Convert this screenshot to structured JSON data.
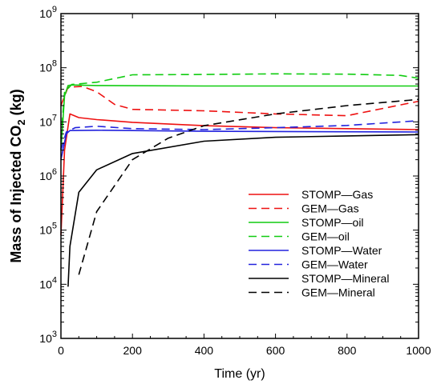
{
  "chart_data": {
    "type": "line",
    "title": "",
    "xlabel": "Time (yr)",
    "ylabel": {
      "prefix": "Mass of Injected CO",
      "subscript": "2",
      "suffix": " (kg)"
    },
    "xlim": [
      0,
      1000
    ],
    "ylim": [
      1000,
      1000000000
    ],
    "yscale": "log",
    "grid": false,
    "legend_position": "right",
    "x_ticks": [
      "0",
      "200",
      "400",
      "600",
      "800",
      "1000"
    ],
    "y_ticks": [
      {
        "base": "10",
        "exp": "3"
      },
      {
        "base": "10",
        "exp": "4"
      },
      {
        "base": "10",
        "exp": "5"
      },
      {
        "base": "10",
        "exp": "6"
      },
      {
        "base": "10",
        "exp": "7"
      },
      {
        "base": "10",
        "exp": "8"
      },
      {
        "base": "10",
        "exp": "9"
      }
    ],
    "series": [
      {
        "name": "STOMP—Gas",
        "color": "#ee1111",
        "dash": "solid",
        "points": [
          [
            0,
            80000
          ],
          [
            10,
            3000000
          ],
          [
            25,
            14000000
          ],
          [
            50,
            12000000
          ],
          [
            100,
            11000000
          ],
          [
            200,
            9800000
          ],
          [
            400,
            8500000
          ],
          [
            600,
            7800000
          ],
          [
            800,
            7500000
          ],
          [
            1000,
            7200000
          ]
        ]
      },
      {
        "name": "GEM—Gas",
        "color": "#ee1111",
        "dash": "dashed",
        "points": [
          [
            0,
            20000000
          ],
          [
            20,
            44000000
          ],
          [
            60,
            45000000
          ],
          [
            100,
            36000000
          ],
          [
            150,
            21000000
          ],
          [
            200,
            17000000
          ],
          [
            400,
            16000000
          ],
          [
            600,
            14000000
          ],
          [
            800,
            13000000
          ],
          [
            1000,
            24000000
          ]
        ]
      },
      {
        "name": "STOMP—oil",
        "color": "#11cc11",
        "dash": "solid",
        "points": [
          [
            0,
            3000000
          ],
          [
            10,
            30000000
          ],
          [
            20,
            47000000
          ],
          [
            30,
            48000000
          ],
          [
            100,
            47000000
          ],
          [
            400,
            46000000
          ],
          [
            1000,
            46000000
          ]
        ]
      },
      {
        "name": "GEM—oil",
        "color": "#11cc11",
        "dash": "dashed",
        "points": [
          [
            0,
            5000000
          ],
          [
            10,
            35000000
          ],
          [
            30,
            49000000
          ],
          [
            100,
            54000000
          ],
          [
            200,
            74000000
          ],
          [
            400,
            75000000
          ],
          [
            600,
            77000000
          ],
          [
            800,
            76000000
          ],
          [
            950,
            72000000
          ],
          [
            1000,
            64000000
          ]
        ]
      },
      {
        "name": "STOMP—Water",
        "color": "#2222dd",
        "dash": "solid",
        "points": [
          [
            0,
            2000000
          ],
          [
            15,
            6000000
          ],
          [
            25,
            6900000
          ],
          [
            100,
            7000000
          ],
          [
            400,
            6700000
          ],
          [
            1000,
            6500000
          ]
        ]
      },
      {
        "name": "GEM—Water",
        "color": "#2222dd",
        "dash": "dashed",
        "points": [
          [
            0,
            3000000
          ],
          [
            15,
            6500000
          ],
          [
            40,
            7800000
          ],
          [
            100,
            8300000
          ],
          [
            200,
            7500000
          ],
          [
            400,
            7200000
          ],
          [
            600,
            7800000
          ],
          [
            800,
            8600000
          ],
          [
            1000,
            10500000
          ]
        ]
      },
      {
        "name": "STOMP—Mineral",
        "color": "#000000",
        "dash": "solid",
        "points": [
          [
            20,
            9000
          ],
          [
            25,
            50000
          ],
          [
            50,
            500000
          ],
          [
            100,
            1300000
          ],
          [
            200,
            2600000
          ],
          [
            400,
            4400000
          ],
          [
            600,
            5200000
          ],
          [
            800,
            5500000
          ],
          [
            1000,
            5800000
          ]
        ]
      },
      {
        "name": "GEM—Mineral",
        "color": "#000000",
        "dash": "dashed",
        "points": [
          [
            50,
            15000
          ],
          [
            100,
            220000
          ],
          [
            200,
            2000000
          ],
          [
            300,
            5000000
          ],
          [
            400,
            8500000
          ],
          [
            600,
            14000000
          ],
          [
            800,
            20000000
          ],
          [
            1000,
            26000000
          ]
        ]
      }
    ]
  }
}
